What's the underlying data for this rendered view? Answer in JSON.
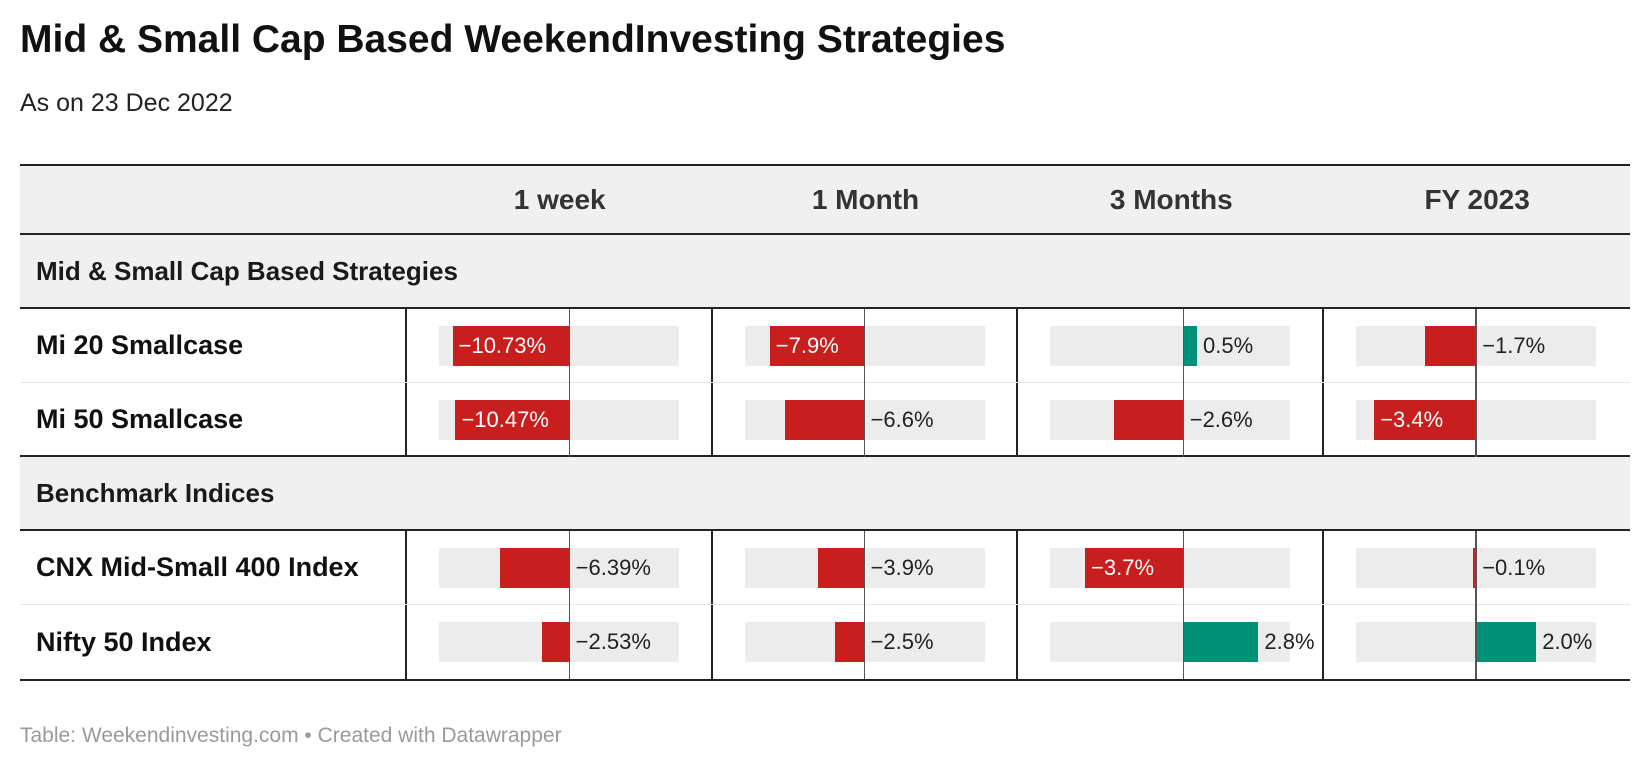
{
  "title": "Mid & Small Cap Based WeekendInvesting Strategies",
  "subtitle": "As on 23 Dec 2022",
  "footer": "Table: Weekendinvesting.com • Created with Datawrapper",
  "colors": {
    "negative": "#c81e1e",
    "positive": "#00917a",
    "track": "#ececec"
  },
  "chart_data": {
    "type": "table",
    "columns": [
      "1 week",
      "1 Month",
      "3 Months",
      "FY 2023"
    ],
    "column_ranges": [
      [
        -12,
        10
      ],
      [
        -10,
        10
      ],
      [
        -5,
        4
      ],
      [
        -4,
        4
      ]
    ],
    "groups": [
      {
        "name": "Mid & Small Cap Based Strategies",
        "rows": [
          {
            "label": "Mi 20 Smallcase",
            "values": [
              -10.73,
              -7.9,
              0.5,
              -1.7
            ],
            "display": [
              "−10.73%",
              "−7.9%",
              "0.5%",
              "−1.7%"
            ]
          },
          {
            "label": "Mi 50 Smallcase",
            "values": [
              -10.47,
              -6.6,
              -2.6,
              -3.4
            ],
            "display": [
              "−10.47%",
              "−6.6%",
              "−2.6%",
              "−3.4%"
            ]
          }
        ]
      },
      {
        "name": "Benchmark Indices",
        "rows": [
          {
            "label": "CNX Mid-Small 400 Index",
            "values": [
              -6.39,
              -3.9,
              -3.7,
              -0.1
            ],
            "display": [
              "−6.39%",
              "−3.9%",
              "−3.7%",
              "−0.1%"
            ]
          },
          {
            "label": "Nifty 50 Index",
            "values": [
              -2.53,
              -2.5,
              2.8,
              2.0
            ],
            "display": [
              "−2.53%",
              "−2.5%",
              "2.8%",
              "2.0%"
            ]
          }
        ]
      }
    ]
  }
}
